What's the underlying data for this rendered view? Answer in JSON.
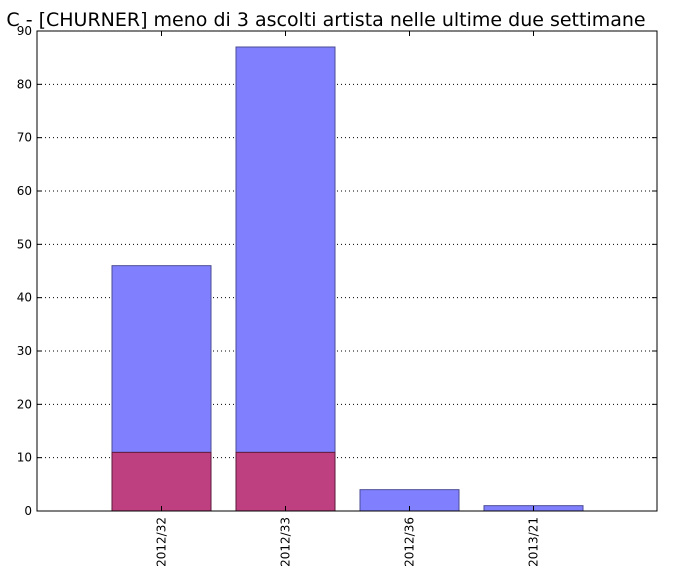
{
  "chart_data": {
    "type": "bar",
    "title": "C - [CHURNER] meno di 3 ascolti artista nelle ultime due settimane",
    "xlabel": "",
    "ylabel": "",
    "categories": [
      "2012/32",
      "2012/33",
      "2012/36",
      "2013/21"
    ],
    "series": [
      {
        "values": [
          46,
          87,
          4,
          1
        ],
        "color": "#8080ff"
      },
      {
        "values": [
          11,
          11,
          0,
          0
        ],
        "color": "#bf4080"
      }
    ],
    "ylim": [
      0,
      90
    ],
    "yticks": [
      0,
      10,
      20,
      30,
      40,
      50,
      60,
      70,
      80,
      90
    ],
    "grid": "horizontal-dotted",
    "stacked": false,
    "overlay": true
  }
}
